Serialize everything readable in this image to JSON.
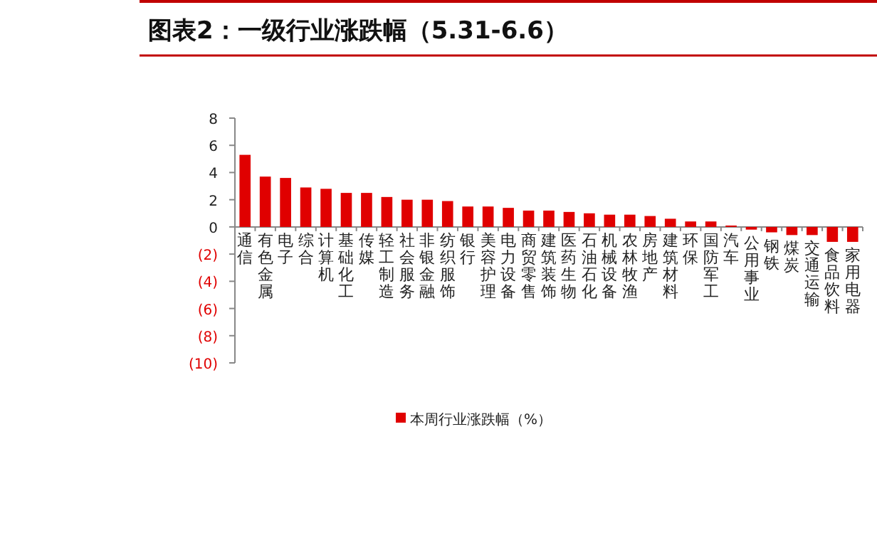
{
  "chart_data": {
    "type": "bar",
    "title": "图表2：一级行业涨跌幅（5.31-6.6）",
    "categories": [
      "通信",
      "有色金属",
      "电子",
      "综合",
      "计算机",
      "基础化工",
      "传媒",
      "轻工制造",
      "社会服务",
      "非银金融",
      "纺织服饰",
      "银行",
      "美容护理",
      "电力设备",
      "商贸零售",
      "建筑装饰",
      "医药生物",
      "石油石化",
      "机械设备",
      "农林牧渔",
      "房地产",
      "建筑材料",
      "环保",
      "国防军工",
      "汽车",
      "公用事业",
      "钢铁",
      "煤炭",
      "交通运输",
      "食品饮料",
      "家用电器"
    ],
    "series": [
      {
        "name": "本周行业涨跌幅（%）",
        "color": "#e00000",
        "values": [
          5.3,
          3.7,
          3.6,
          2.9,
          2.8,
          2.5,
          2.5,
          2.2,
          2.0,
          2.0,
          1.9,
          1.5,
          1.5,
          1.4,
          1.2,
          1.2,
          1.1,
          1.0,
          0.9,
          0.9,
          0.8,
          0.6,
          0.4,
          0.4,
          0.1,
          -0.2,
          -0.4,
          -0.6,
          -0.6,
          -1.1,
          -1.1
        ]
      }
    ],
    "ylim": [
      -10,
      8
    ],
    "yticks": [
      8,
      6,
      4,
      2,
      0,
      {
        "value": -2,
        "label": "(2)"
      },
      {
        "value": -4,
        "label": "(4)"
      },
      {
        "value": -6,
        "label": "(6)"
      },
      {
        "value": -8,
        "label": "(8)"
      },
      {
        "value": -10,
        "label": "(10)"
      }
    ],
    "grid": false,
    "legend": "bottom"
  }
}
